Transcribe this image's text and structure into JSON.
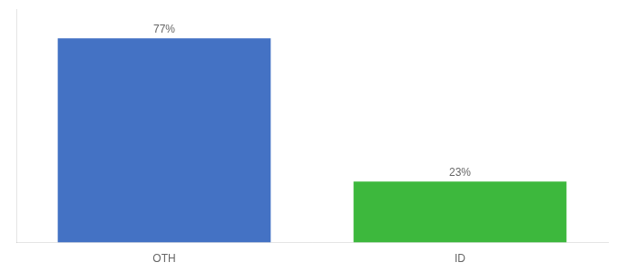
{
  "chart_data": {
    "type": "bar",
    "categories": [
      "OTH",
      "ID"
    ],
    "values": [
      77,
      23
    ],
    "value_labels": [
      "77%",
      "23%"
    ],
    "data_labels": true,
    "colors": [
      "#4472c4",
      "#3db83d"
    ],
    "ylim": [
      0,
      88
    ],
    "grid": false,
    "tick_labels": "x"
  }
}
